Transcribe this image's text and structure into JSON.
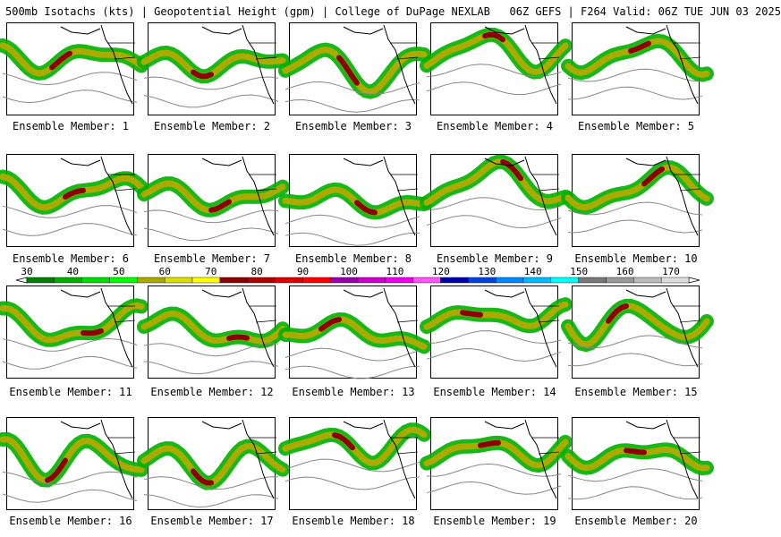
{
  "header": {
    "title": "500mb Isotachs (kts) | Geopotential Height (gpm) | College of DuPage NEXLAB   06Z GEFS | F264 Valid: 06Z TUE JUN 03 2025"
  },
  "panels": [
    {
      "label": "Ensemble Member: 1"
    },
    {
      "label": "Ensemble Member: 2"
    },
    {
      "label": "Ensemble Member: 3"
    },
    {
      "label": "Ensemble Member: 4"
    },
    {
      "label": "Ensemble Member: 5"
    },
    {
      "label": "Ensemble Member: 6"
    },
    {
      "label": "Ensemble Member: 7"
    },
    {
      "label": "Ensemble Member: 8"
    },
    {
      "label": "Ensemble Member: 9"
    },
    {
      "label": "Ensemble Member: 10"
    },
    {
      "label": "Ensemble Member: 11"
    },
    {
      "label": "Ensemble Member: 12"
    },
    {
      "label": "Ensemble Member: 13"
    },
    {
      "label": "Ensemble Member: 14"
    },
    {
      "label": "Ensemble Member: 15"
    },
    {
      "label": "Ensemble Member: 16"
    },
    {
      "label": "Ensemble Member: 17"
    },
    {
      "label": "Ensemble Member: 18"
    },
    {
      "label": "Ensemble Member: 19"
    },
    {
      "label": "Ensemble Member: 20"
    }
  ],
  "colorbar": {
    "unit": "kts",
    "tick_labels": [
      "30",
      "40",
      "50",
      "60",
      "70",
      "80",
      "90",
      "100",
      "110",
      "120",
      "130",
      "140",
      "150",
      "160",
      "170"
    ],
    "colors": [
      "#007f00",
      "#00b000",
      "#00dd00",
      "#00ff00",
      "#aaaa00",
      "#dddd00",
      "#ffff00",
      "#8b0000",
      "#b00000",
      "#dd0000",
      "#ff0000",
      "#9900aa",
      "#cc00cc",
      "#ee00ee",
      "#ff55ff",
      "#0000aa",
      "#0044dd",
      "#0088ff",
      "#00bbff",
      "#00ffff",
      "#777777",
      "#999999",
      "#bbbbbb",
      "#dddddd"
    ]
  },
  "map_colors": {
    "jet_low": "#00b000",
    "jet_mid": "#aaaa00",
    "jet_core": "#8b0000",
    "height_contour": "#888888",
    "coastline": "#000000"
  }
}
